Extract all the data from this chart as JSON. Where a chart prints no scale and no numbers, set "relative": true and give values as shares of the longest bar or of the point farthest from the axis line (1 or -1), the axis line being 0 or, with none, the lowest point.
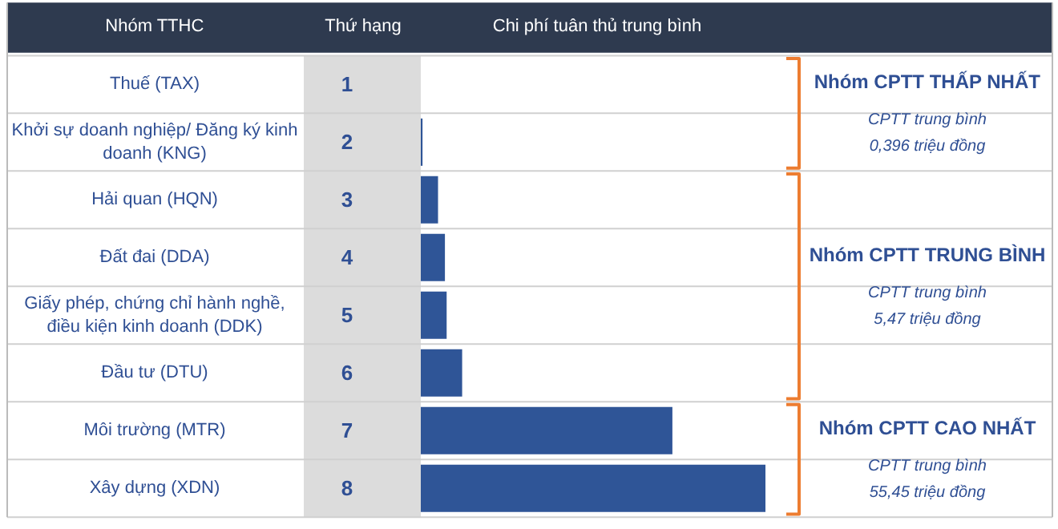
{
  "chart_data": {
    "type": "bar",
    "orientation": "horizontal",
    "relative": true,
    "ylabel": "Nhóm TTHC",
    "xlabel": "Chi phí tuân thủ trung bình",
    "categories": [
      "Thuế (TAX)",
      "Khởi sự doanh nghiệp/ Đăng ký kinh doanh (KNG)",
      "Hải quan (HQN)",
      "Đất đai (DDA)",
      "Giấy phép, chứng chỉ hành nghề, điều kiện kinh doanh (DDK)",
      "Đầu tư (DTU)",
      "Môi trường (MTR)",
      "Xây dựng (XDN)"
    ],
    "values": [
      0,
      0.005,
      0.05,
      0.07,
      0.075,
      0.12,
      0.73,
      1
    ],
    "color": "#2f5597",
    "annotations": [
      "Thứ hạng",
      "1",
      "2",
      "3",
      "4",
      "5",
      "6",
      "7",
      "8",
      "Nhóm CPTT THẤP NHẤT",
      "CPTT trung bình\n0,396 triệu đồng",
      "Nhóm CPTT TRUNG BÌNH",
      "CPTT trung bình\n5,47 triệu đồng",
      "Nhóm CPTT CAO NHẤT",
      "CPTT trung bình\n55,45 triệu đồng"
    ]
  }
}
